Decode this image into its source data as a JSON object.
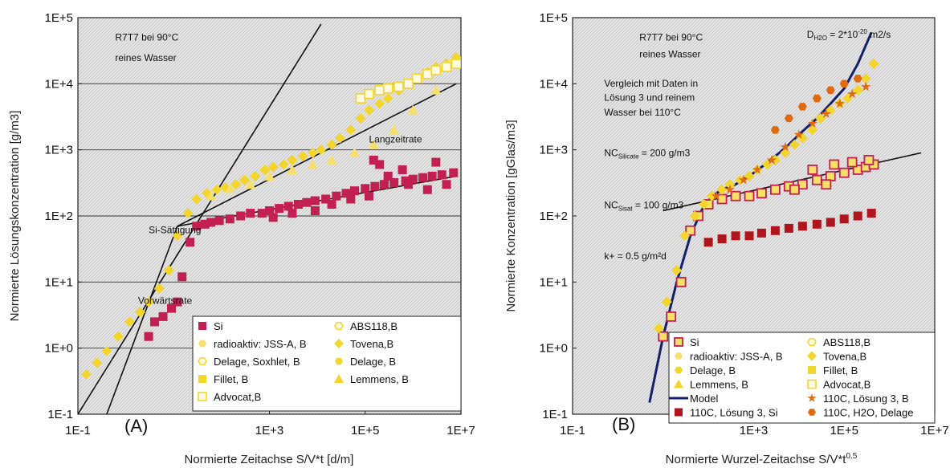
{
  "colors": {
    "si": "#c21f52",
    "yellow": "#f3d52c",
    "yellow_light": "#f6e06a",
    "model": "#14206b",
    "dark_red": "#b0141c",
    "orange": "#e06a12",
    "hatch": "#d9d9d9"
  },
  "chart_data": [
    {
      "type": "scatter",
      "panel_label": "(A)",
      "xlabel": "Normierte Zeitachse S/V*t  [d/m]",
      "ylabel": "Normierte Lösungskonzentration  [g/m3]",
      "xscale": "log",
      "yscale": "log",
      "xlim": [
        0.1,
        10000000
      ],
      "ylim": [
        0.1,
        100000
      ],
      "xticks": [
        {
          "v": 0.1,
          "label": "1E-1"
        },
        {
          "v": 1000,
          "label": "1E+3"
        },
        {
          "v": 100000,
          "label": "1E+5"
        },
        {
          "v": 10000000,
          "label": "1E+7"
        }
      ],
      "yticks": [
        {
          "v": 0.1,
          "label": "1E-1"
        },
        {
          "v": 1,
          "label": "1E+0"
        },
        {
          "v": 10,
          "label": "1E+1"
        },
        {
          "v": 100,
          "label": "1E+2"
        },
        {
          "v": 1000,
          "label": "1E+3"
        },
        {
          "v": 10000,
          "label": "1E+4"
        },
        {
          "v": 100000,
          "label": "1E+5"
        }
      ],
      "grid": "horizontal",
      "annotations": [
        {
          "text": "R7T7 bei 90°C",
          "x": 0.6,
          "y": 45000
        },
        {
          "text": "reines Wasser",
          "x": 0.6,
          "y": 22000
        },
        {
          "text": "Langzeitrate",
          "x": 120000,
          "y": 1300
        },
        {
          "text": "Si-Sättigung",
          "x": 3,
          "y": 55
        },
        {
          "text": "Vorwärtsrate",
          "x": 1.8,
          "y": 4.7
        }
      ],
      "lines": [
        {
          "name": "",
          "x": [
            0.1,
            12000
          ],
          "y": [
            0.1,
            80000
          ]
        },
        {
          "name": "",
          "x": [
            0.4,
            12
          ],
          "y": [
            0.1,
            70
          ]
        },
        {
          "name": "",
          "x": [
            12,
            8000000
          ],
          "y": [
            70,
            10000
          ]
        },
        {
          "name": "",
          "x": [
            12,
            8000000
          ],
          "y": [
            70,
            400
          ]
        }
      ],
      "legend": {
        "placement": "bottom-right",
        "entries": [
          {
            "label": "Si",
            "marker": "square",
            "color": "#c21f52"
          },
          {
            "label": "ABS118,B",
            "marker": "hexagon-open",
            "color": "#f3d52c"
          },
          {
            "label": "radioaktiv: JSS-A, B",
            "marker": "hexagon",
            "color": "#f6e06a"
          },
          {
            "label": "Tovena,B",
            "marker": "diamond",
            "color": "#f3d52c"
          },
          {
            "label": "Delage, Soxhlet, B",
            "marker": "hexagon-open",
            "color": "#f3d52c"
          },
          {
            "label": "Delage, B",
            "marker": "hexagon",
            "color": "#f3d52c"
          },
          {
            "label": "Fillet, B",
            "marker": "square",
            "color": "#f3d52c"
          },
          {
            "label": "Lemmens, B",
            "marker": "triangle",
            "color": "#f3d52c"
          },
          {
            "label": "Advocat,B",
            "marker": "square-open",
            "color": "#f3d52c"
          }
        ]
      },
      "series": [
        {
          "name": "Si",
          "marker": "square",
          "color": "#c21f52",
          "x": [
            3,
            4,
            6,
            9,
            12,
            15,
            22,
            30,
            45,
            60,
            90,
            150,
            250,
            400,
            700,
            1000,
            1600,
            2500,
            4000,
            6000,
            9000,
            15000,
            25000,
            40000,
            60000,
            100000,
            160000,
            250000,
            400000,
            700000,
            1000000,
            1600000,
            2500000,
            4000000,
            7000000,
            9000,
            20000,
            50000,
            120000,
            300000,
            800000,
            2000000,
            5000000,
            1200,
            3000,
            200000,
            600000,
            3000000,
            150000
          ],
          "y": [
            1.5,
            2.5,
            3,
            4,
            5,
            12,
            40,
            70,
            75,
            80,
            85,
            90,
            100,
            110,
            110,
            120,
            130,
            140,
            150,
            160,
            170,
            180,
            200,
            220,
            240,
            260,
            280,
            300,
            320,
            340,
            360,
            380,
            400,
            420,
            450,
            120,
            150,
            180,
            200,
            400,
            300,
            250,
            300,
            95,
            110,
            600,
            500,
            650,
            700
          ]
        },
        {
          "name": "Yellow data",
          "marker": "diamond",
          "color": "#f3d52c",
          "x": [
            0.15,
            0.25,
            0.4,
            0.7,
            1.2,
            2,
            3,
            5,
            8,
            12,
            20,
            30,
            50,
            80,
            120,
            200,
            300,
            500,
            800,
            1200,
            2000,
            3000,
            5000,
            8000,
            12000,
            20000,
            30000,
            50000,
            80000,
            120000,
            200000,
            300000,
            500000,
            800000,
            1200000,
            2000000,
            3000000,
            5000000,
            8000000
          ],
          "y": [
            0.4,
            0.6,
            0.9,
            1.5,
            2.5,
            3.5,
            5,
            8,
            15,
            50,
            110,
            180,
            220,
            250,
            270,
            300,
            350,
            400,
            500,
            550,
            600,
            700,
            800,
            900,
            1000,
            1200,
            1500,
            2000,
            3000,
            4000,
            5000,
            6000,
            8000,
            10000,
            12000,
            15000,
            18000,
            20000,
            25000
          ]
        },
        {
          "name": "Lemmens",
          "marker": "triangle",
          "color": "#f6e06a",
          "x": [
            60,
            150,
            400,
            1000,
            3000,
            8000,
            20000,
            60000,
            150000,
            400000,
            1000000,
            3000000,
            6000000
          ],
          "y": [
            200,
            260,
            300,
            400,
            500,
            600,
            700,
            900,
            1200,
            2000,
            4000,
            8000,
            20000
          ]
        },
        {
          "name": "Advocat",
          "marker": "square-open",
          "color": "#f3d52c",
          "x": [
            80000,
            120000,
            200000,
            300000,
            500000,
            800000,
            1200000,
            2000000,
            3000000,
            5000000,
            8000000
          ],
          "y": [
            6000,
            7000,
            8000,
            8500,
            9000,
            10000,
            12000,
            14000,
            16000,
            18000,
            20000
          ]
        }
      ]
    },
    {
      "type": "scatter",
      "panel_label": "(B)",
      "xlabel": "Normierte Wurzel-Zeitachse S/V*t",
      "xlabel_sup": "0.5",
      "ylabel": "Normierte Konzentration  [gGlas/m3]",
      "xscale": "log",
      "yscale": "log",
      "xlim": [
        0.1,
        10000000
      ],
      "ylim": [
        0.1,
        100000
      ],
      "xticks": [
        {
          "v": 0.1,
          "label": "1E-1"
        },
        {
          "v": 1000,
          "label": "1E+3"
        },
        {
          "v": 100000,
          "label": "1E+5"
        },
        {
          "v": 10000000,
          "label": "1E+7"
        }
      ],
      "yticks": [
        {
          "v": 0.1,
          "label": "1E-1"
        },
        {
          "v": 1,
          "label": "1E+0"
        },
        {
          "v": 10,
          "label": "1E+1"
        },
        {
          "v": 100,
          "label": "1E+2"
        },
        {
          "v": 1000,
          "label": "1E+3"
        },
        {
          "v": 10000,
          "label": "1E+4"
        },
        {
          "v": 100000,
          "label": "1E+5"
        }
      ],
      "grid": "none",
      "annotations": [
        {
          "text": "R7T7 bei 90°C",
          "x": 3,
          "y": 45000
        },
        {
          "text": "reines Wasser",
          "x": 3,
          "y": 25000
        },
        {
          "text": "Vergleich mit Daten in",
          "x": 0.5,
          "y": 9000
        },
        {
          "text": "Lösung 3 und reinem",
          "x": 0.5,
          "y": 5500
        },
        {
          "text": "Wasser bei 110°C",
          "x": 0.5,
          "y": 3300
        },
        {
          "text": "k+ = 0.5 g/m²d",
          "x": 0.5,
          "y": 22
        }
      ],
      "formulas": [
        {
          "base": "D",
          "sub": "H2O",
          "rest": " = 2*10",
          "sup": "-20",
          "tail": " m2/s",
          "x": 15000,
          "y": 50000
        },
        {
          "base": "NC",
          "sub": "Silicate",
          "rest": " = 200 g/m3",
          "x": 0.5,
          "y": 800
        },
        {
          "base": "NC",
          "sub": "Sisat",
          "rest": " = 100 g/m3",
          "x": 0.5,
          "y": 130
        }
      ],
      "model": {
        "name": "Model",
        "x": [
          5,
          10,
          20,
          40,
          70,
          120,
          200,
          400,
          800,
          1500,
          3000,
          6000,
          12000,
          25000,
          50000,
          100000,
          200000,
          400000
        ],
        "y": [
          0.15,
          1.5,
          10,
          50,
          120,
          200,
          250,
          300,
          400,
          550,
          800,
          1200,
          1900,
          3000,
          5000,
          8500,
          20000,
          60000
        ]
      },
      "lines": [
        {
          "name": "",
          "x": [
            10,
            5000000
          ],
          "y": [
            120,
            900
          ]
        }
      ],
      "legend": {
        "placement": "bottom-right",
        "entries": [
          {
            "label": "Si",
            "marker": "square-open-red",
            "color": "#c21f52"
          },
          {
            "label": "ABS118,B",
            "marker": "hexagon-open",
            "color": "#f3d52c"
          },
          {
            "label": "radioaktiv: JSS-A, B",
            "marker": "hexagon",
            "color": "#f6e06a"
          },
          {
            "label": "Tovena,B",
            "marker": "diamond",
            "color": "#f3d52c"
          },
          {
            "label": "Delage, B",
            "marker": "hexagon",
            "color": "#f3d52c"
          },
          {
            "label": "Fillet, B",
            "marker": "square",
            "color": "#f3d52c"
          },
          {
            "label": "Lemmens, B",
            "marker": "triangle",
            "color": "#f3d52c"
          },
          {
            "label": "Advocat,B",
            "marker": "square-open",
            "color": "#f3d52c"
          },
          {
            "label": "Model",
            "marker": "line",
            "color": "#14206b"
          },
          {
            "label": "110C, Lösung 3, B",
            "marker": "star",
            "color": "#e06a12"
          },
          {
            "label": "110C, Lösung 3, Si",
            "marker": "square-dark",
            "color": "#b0141c"
          },
          {
            "label": "110C, H2O, Delage",
            "marker": "hexagon",
            "color": "#e06a12"
          }
        ]
      },
      "series": [
        {
          "name": "Si",
          "marker": "square-open-red",
          "color": "#c21f52",
          "x": [
            10,
            15,
            25,
            40,
            60,
            100,
            200,
            400,
            800,
            1500,
            3000,
            6000,
            12000,
            25000,
            50000,
            100000,
            200000,
            300000,
            450000,
            20000,
            60000,
            150000,
            350000,
            8000,
            40000
          ],
          "y": [
            1.5,
            3,
            10,
            60,
            100,
            150,
            180,
            200,
            200,
            220,
            250,
            280,
            300,
            350,
            400,
            450,
            500,
            550,
            600,
            500,
            600,
            650,
            700,
            250,
            300
          ]
        },
        {
          "name": "110C, Lösung 3, Si",
          "marker": "square-dark",
          "color": "#b0141c",
          "x": [
            100,
            200,
            400,
            800,
            1500,
            3000,
            6000,
            12000,
            25000,
            50000,
            100000,
            200000,
            400000
          ],
          "y": [
            40,
            45,
            50,
            50,
            55,
            60,
            65,
            70,
            75,
            80,
            90,
            100,
            110
          ]
        },
        {
          "name": "Yellow data",
          "marker": "diamond",
          "color": "#f3d52c",
          "x": [
            8,
            12,
            20,
            30,
            50,
            80,
            120,
            200,
            300,
            500,
            800,
            1200,
            2000,
            3000,
            5000,
            8000,
            12000,
            20000,
            30000,
            50000,
            80000,
            120000,
            200000,
            300000,
            450000
          ],
          "y": [
            2,
            5,
            15,
            50,
            100,
            150,
            200,
            250,
            300,
            350,
            400,
            500,
            600,
            700,
            900,
            1200,
            1500,
            2000,
            3000,
            4000,
            5000,
            6000,
            8000,
            12000,
            20000
          ]
        },
        {
          "name": "110C, Lösung 3, B",
          "marker": "star",
          "color": "#e06a12",
          "x": [
            150,
            300,
            600,
            1200,
            2500,
            5000,
            10000,
            20000,
            40000,
            80000,
            150000,
            300000
          ],
          "y": [
            200,
            250,
            350,
            500,
            700,
            1100,
            1700,
            2500,
            3500,
            5000,
            7000,
            9000
          ]
        },
        {
          "name": "110C, H2O, Delage",
          "marker": "hexagon",
          "color": "#e06a12",
          "x": [
            3000,
            6000,
            12000,
            25000,
            50000,
            100000,
            200000
          ],
          "y": [
            2000,
            3000,
            4500,
            6000,
            8000,
            10000,
            12000
          ]
        }
      ]
    }
  ]
}
